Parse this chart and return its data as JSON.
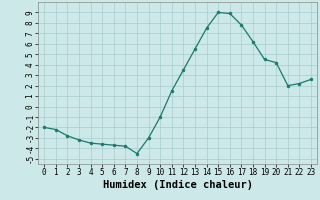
{
  "xlabel": "Humidex (Indice chaleur)",
  "x_values": [
    0,
    1,
    2,
    3,
    4,
    5,
    6,
    7,
    8,
    9,
    10,
    11,
    12,
    13,
    14,
    15,
    16,
    17,
    18,
    19,
    20,
    21,
    22,
    23
  ],
  "y_values": [
    -2,
    -2.2,
    -2.8,
    -3.2,
    -3.5,
    -3.6,
    -3.7,
    -3.8,
    -4.5,
    -3.0,
    -1.0,
    1.5,
    3.5,
    5.5,
    7.5,
    9.0,
    8.9,
    7.8,
    6.2,
    4.5,
    4.2,
    2.0,
    2.2,
    2.6
  ],
  "line_color": "#1a7a6e",
  "marker_color": "#1a7a6e",
  "bg_color": "#cce8e8",
  "grid_color": "#a8cccc",
  "ylim": [
    -5.5,
    10.0
  ],
  "xlim": [
    -0.5,
    23.5
  ],
  "yticks": [
    -5,
    -4,
    -3,
    -2,
    -1,
    0,
    1,
    2,
    3,
    4,
    5,
    6,
    7,
    8,
    9
  ],
  "xticks": [
    0,
    1,
    2,
    3,
    4,
    5,
    6,
    7,
    8,
    9,
    10,
    11,
    12,
    13,
    14,
    15,
    16,
    17,
    18,
    19,
    20,
    21,
    22,
    23
  ],
  "tick_label_fontsize": 5.5,
  "xlabel_fontsize": 7.5
}
